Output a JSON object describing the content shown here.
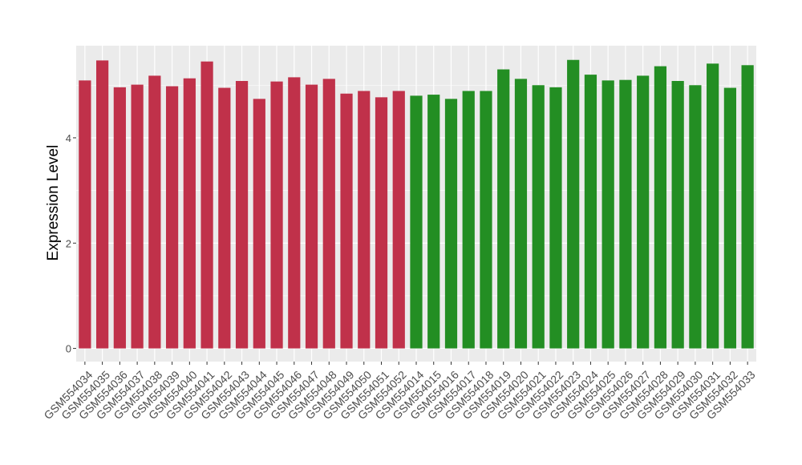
{
  "chart_data": {
    "type": "bar",
    "title": "",
    "xlabel": "",
    "ylabel": "Expression Level",
    "ylim": [
      -0.25,
      5.75
    ],
    "yticks": [
      0,
      2,
      4
    ],
    "grid": true,
    "legend": "none",
    "colors": {
      "group_a": "#c0314a",
      "group_b": "#238e23",
      "panel_bg": "#ebebeb",
      "grid_major": "#ffffff",
      "tick_text": "#4d4d4d"
    },
    "categories": [
      "GSM554034",
      "GSM554035",
      "GSM554036",
      "GSM554037",
      "GSM554038",
      "GSM554039",
      "GSM554040",
      "GSM554041",
      "GSM554042",
      "GSM554043",
      "GSM554044",
      "GSM554045",
      "GSM554046",
      "GSM554047",
      "GSM554048",
      "GSM554049",
      "GSM554050",
      "GSM554051",
      "GSM554052",
      "GSM554014",
      "GSM554015",
      "GSM554016",
      "GSM554017",
      "GSM554018",
      "GSM554019",
      "GSM554020",
      "GSM554021",
      "GSM554022",
      "GSM554023",
      "GSM554024",
      "GSM554025",
      "GSM554026",
      "GSM554027",
      "GSM554028",
      "GSM554029",
      "GSM554030",
      "GSM554031",
      "GSM554032",
      "GSM554033"
    ],
    "values": [
      5.09,
      5.47,
      4.96,
      5.01,
      5.18,
      4.98,
      5.13,
      5.45,
      4.95,
      5.08,
      4.74,
      5.07,
      5.15,
      5.01,
      5.12,
      4.84,
      4.89,
      4.77,
      4.89,
      4.8,
      4.82,
      4.74,
      4.89,
      4.89,
      5.3,
      5.12,
      5.0,
      4.96,
      5.48,
      5.2,
      5.09,
      5.1,
      5.18,
      5.36,
      5.08,
      5.0,
      5.41,
      4.95,
      5.38
    ],
    "group_split_index": 19
  }
}
